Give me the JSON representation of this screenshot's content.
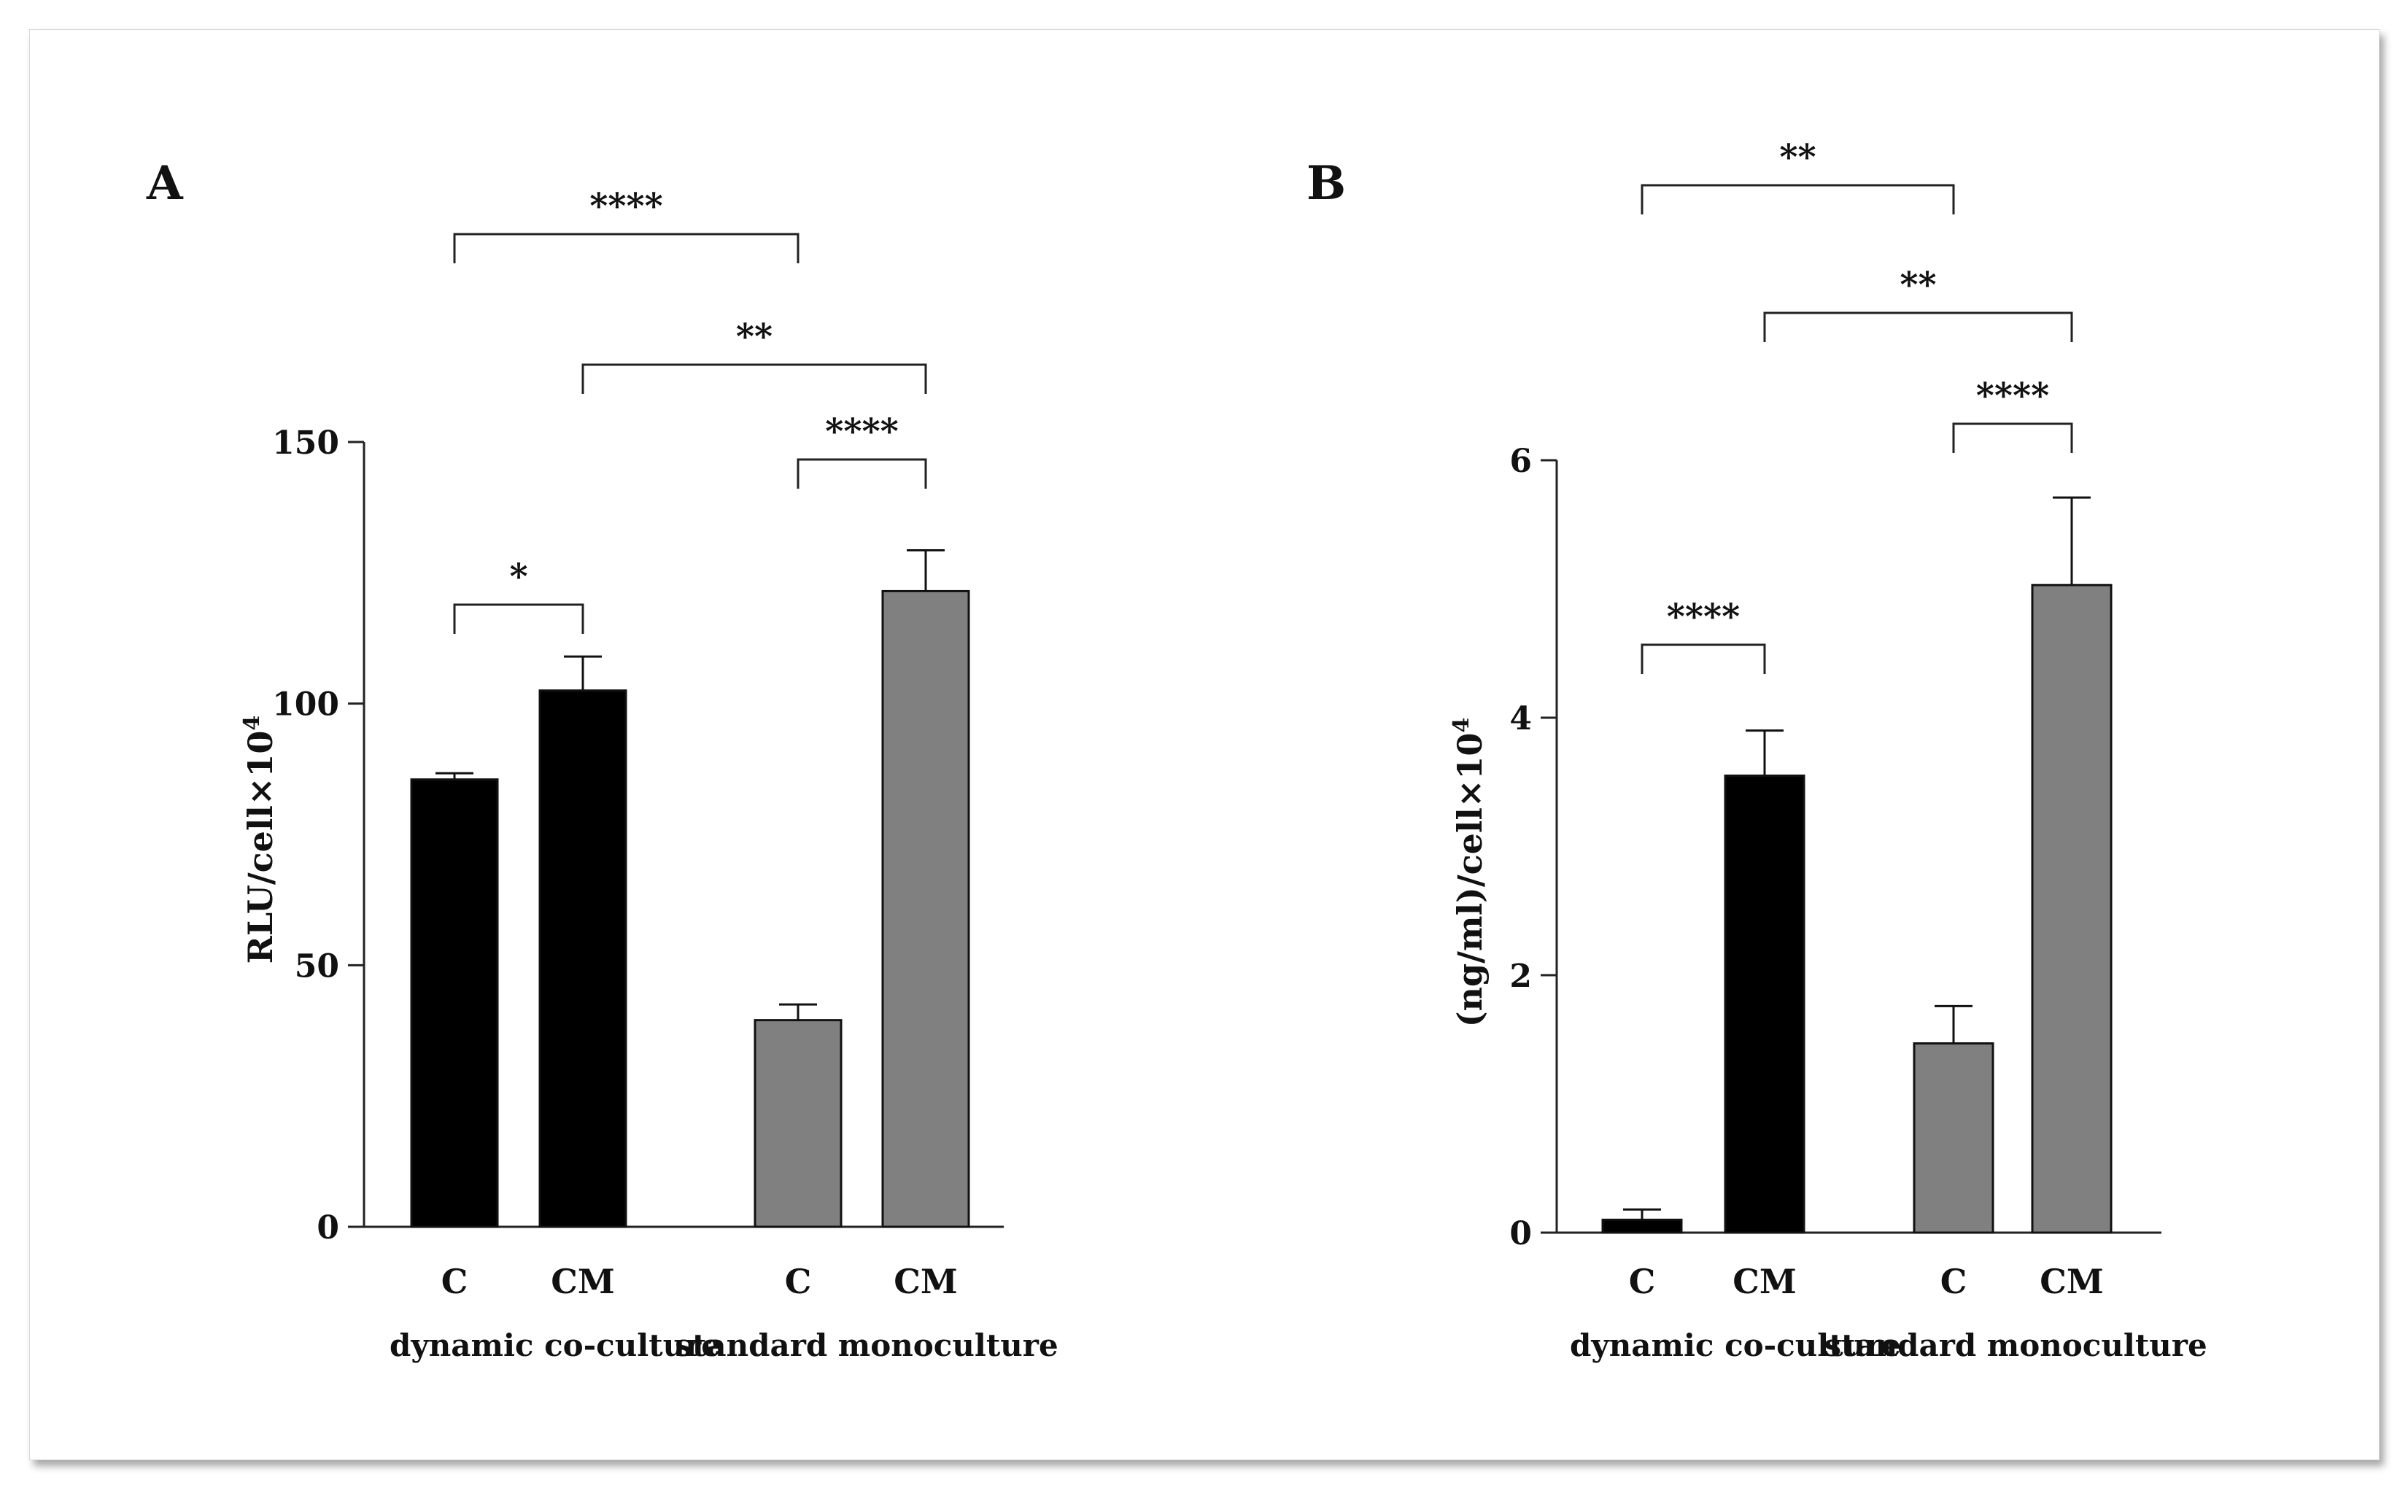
{
  "panels": [
    {
      "letter": "A",
      "ylabel": "RLU/cell×10",
      "ylabel_sup": "4"
    },
    {
      "letter": "B",
      "ylabel": "(ng/ml)/cell×10",
      "ylabel_sup": "4"
    }
  ],
  "chart_data": [
    {
      "type": "bar",
      "title": "",
      "ylabel": "RLU/cell×10⁴",
      "ylim": [
        0,
        150
      ],
      "yticks": [
        0,
        50,
        100,
        150
      ],
      "categories": [
        "C",
        "CM",
        "C",
        "CM"
      ],
      "groups": [
        "dynamic co-culture",
        "standard monoculture"
      ],
      "group_colors": [
        "#000000",
        "#808080"
      ],
      "values": [
        85.5,
        102.5,
        39.5,
        121.5
      ],
      "errors": [
        1.2,
        6.5,
        3.0,
        7.8
      ],
      "significance": [
        {
          "from": 0,
          "to": 1,
          "label": "*"
        },
        {
          "from": 2,
          "to": 3,
          "label": "****"
        },
        {
          "from": 1,
          "to": 3,
          "label": "**"
        },
        {
          "from": 0,
          "to": 2,
          "label": "****"
        }
      ]
    },
    {
      "type": "bar",
      "title": "",
      "ylabel": "(ng/ml)/cell×10⁴",
      "ylim": [
        0,
        6
      ],
      "yticks": [
        0,
        2,
        4,
        6
      ],
      "categories": [
        "C",
        "CM",
        "C",
        "CM"
      ],
      "groups": [
        "dynamic co-culture",
        "standard monoculture"
      ],
      "group_colors": [
        "#000000",
        "#808080"
      ],
      "values": [
        0.1,
        3.55,
        1.47,
        5.03
      ],
      "errors": [
        0.08,
        0.35,
        0.29,
        0.68
      ],
      "significance": [
        {
          "from": 0,
          "to": 1,
          "label": "****"
        },
        {
          "from": 2,
          "to": 3,
          "label": "****"
        },
        {
          "from": 1,
          "to": 3,
          "label": "**"
        },
        {
          "from": 0,
          "to": 2,
          "label": "**"
        }
      ]
    }
  ]
}
